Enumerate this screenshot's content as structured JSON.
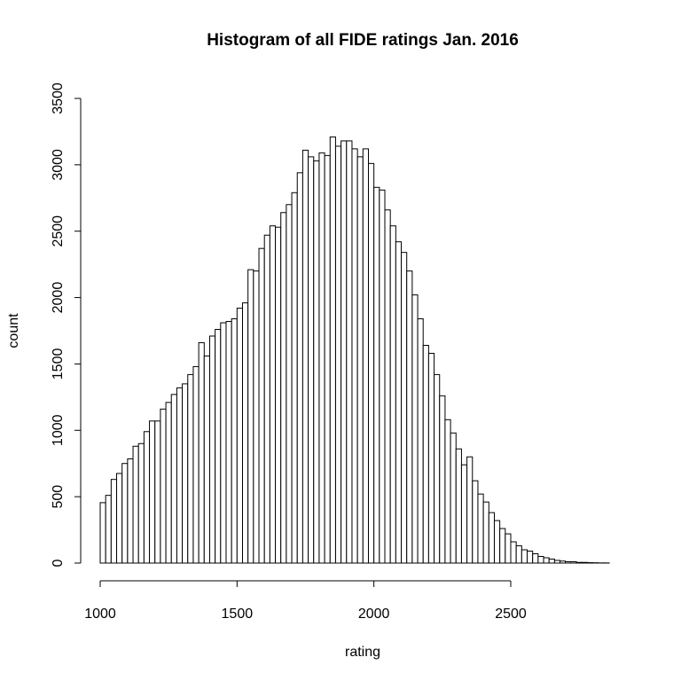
{
  "chart_data": {
    "type": "bar",
    "title": "Histogram of all FIDE ratings Jan. 2016",
    "xlabel": "rating",
    "ylabel": "count",
    "xlim": [
      1000,
      2900
    ],
    "ylim": [
      0,
      3500
    ],
    "bin_width": 20,
    "x_ticks": [
      1000,
      1500,
      2000,
      2500
    ],
    "y_ticks": [
      0,
      500,
      1000,
      1500,
      2000,
      2500,
      3000,
      3500
    ],
    "grid": false,
    "legend": "none",
    "bin_starts": [
      1000,
      1020,
      1040,
      1060,
      1080,
      1100,
      1120,
      1140,
      1160,
      1180,
      1200,
      1220,
      1240,
      1260,
      1280,
      1300,
      1320,
      1340,
      1360,
      1380,
      1400,
      1420,
      1440,
      1460,
      1480,
      1500,
      1520,
      1540,
      1560,
      1580,
      1600,
      1620,
      1640,
      1660,
      1680,
      1700,
      1720,
      1740,
      1760,
      1780,
      1800,
      1820,
      1840,
      1860,
      1880,
      1900,
      1920,
      1940,
      1960,
      1980,
      2000,
      2020,
      2040,
      2060,
      2080,
      2100,
      2120,
      2140,
      2160,
      2180,
      2200,
      2220,
      2240,
      2260,
      2280,
      2300,
      2320,
      2340,
      2360,
      2380,
      2400,
      2420,
      2440,
      2460,
      2480,
      2500,
      2520,
      2540,
      2560,
      2580,
      2600,
      2620,
      2640,
      2660,
      2680,
      2700,
      2720,
      2740,
      2760,
      2780,
      2800,
      2820,
      2840,
      2860,
      2880
    ],
    "values": [
      455,
      510,
      630,
      675,
      750,
      785,
      880,
      900,
      990,
      1070,
      1070,
      1160,
      1210,
      1270,
      1320,
      1350,
      1420,
      1480,
      1660,
      1560,
      1710,
      1760,
      1810,
      1820,
      1840,
      1920,
      1960,
      2210,
      2200,
      2370,
      2470,
      2540,
      2530,
      2640,
      2700,
      2790,
      2940,
      3110,
      3060,
      3030,
      3090,
      3070,
      3210,
      3140,
      3180,
      3180,
      3120,
      3060,
      3120,
      3010,
      2830,
      2810,
      2660,
      2540,
      2420,
      2340,
      2200,
      2020,
      1840,
      1640,
      1580,
      1420,
      1260,
      1080,
      980,
      860,
      740,
      800,
      620,
      520,
      460,
      380,
      320,
      260,
      220,
      160,
      130,
      100,
      90,
      70,
      50,
      40,
      30,
      20,
      15,
      10,
      10,
      5,
      5,
      3,
      2,
      1,
      1,
      0,
      0
    ]
  }
}
